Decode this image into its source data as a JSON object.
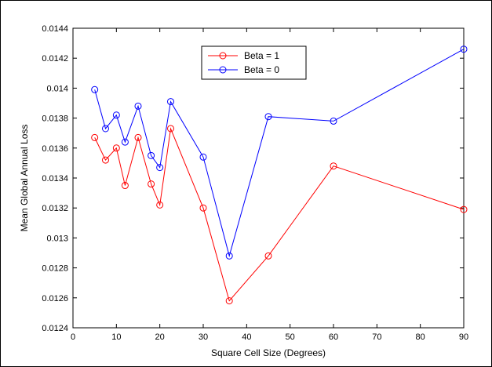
{
  "chart_data": {
    "type": "line",
    "title": "",
    "xlabel": "Square Cell Size (Degrees)",
    "ylabel": "Mean Global Annual Loss",
    "xlim": [
      0,
      90
    ],
    "ylim": [
      0.0124,
      0.0144
    ],
    "xticks": [
      0,
      10,
      20,
      30,
      40,
      50,
      60,
      70,
      80,
      90
    ],
    "yticks": [
      0.0124,
      0.0126,
      0.0128,
      0.013,
      0.0132,
      0.0134,
      0.0136,
      0.0138,
      0.014,
      0.0142,
      0.0144
    ],
    "xtick_labels": [
      "0",
      "10",
      "20",
      "30",
      "40",
      "50",
      "60",
      "70",
      "80",
      "90"
    ],
    "ytick_labels": [
      "0.0124",
      "0.0126",
      "0.0128",
      "0.013",
      "0.0132",
      "0.0134",
      "0.0136",
      "0.0138",
      "0.014",
      "0.0142",
      "0.0144"
    ],
    "grid": false,
    "legend_position": "top-center",
    "x": [
      5,
      7.5,
      10,
      12,
      15,
      18,
      20,
      22.5,
      30,
      36,
      45,
      60,
      90
    ],
    "series": [
      {
        "name": "Beta = 1",
        "color": "#ff0000",
        "marker": "circle",
        "values": [
          0.01367,
          0.01352,
          0.0136,
          0.01335,
          0.01367,
          0.01336,
          0.01322,
          0.01373,
          0.0132,
          0.01258,
          0.01288,
          0.01348,
          0.01319
        ]
      },
      {
        "name": "Beta = 0",
        "color": "#0000ff",
        "marker": "circle",
        "values": [
          0.01399,
          0.01373,
          0.01382,
          0.01364,
          0.01388,
          0.01355,
          0.01347,
          0.01391,
          0.01354,
          0.01288,
          0.01381,
          0.01378,
          0.01426
        ]
      }
    ]
  }
}
